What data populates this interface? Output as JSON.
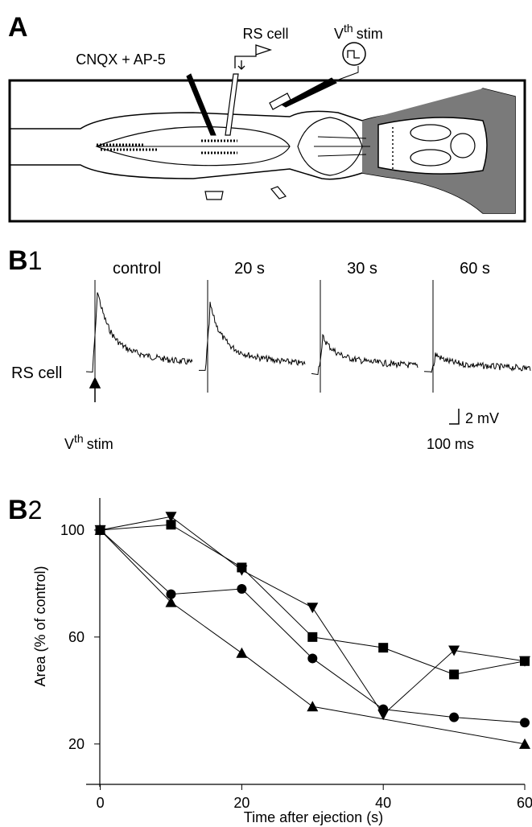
{
  "panel_a": {
    "label": "A",
    "cnqx": "CNQX + AP-5",
    "rs_cell": "RS cell",
    "vth": {
      "base": "V",
      "sup": "th",
      "rest": "stim"
    }
  },
  "panel_b1": {
    "label_main": "B",
    "label_num": "1",
    "conditions": [
      "control",
      "20 s",
      "30 s",
      "60 s"
    ],
    "rs_cell": "RS cell",
    "vth": {
      "base": "V",
      "sup": "th",
      "rest": "stim"
    },
    "scale_v": "2 mV",
    "scale_t": "100 ms"
  },
  "panel_b2": {
    "label_main": "B",
    "label_num": "2"
  },
  "chart_data": {
    "type": "line",
    "xlabel": "Time after ejection (s)",
    "ylabel": "Area (% of control)",
    "xlim": [
      -2,
      60
    ],
    "ylim": [
      4,
      112
    ],
    "xticks": [
      0,
      20,
      40,
      60
    ],
    "yticks": [
      20,
      60,
      100
    ],
    "series": [
      {
        "marker": "triangle-down",
        "color": "#000000",
        "x": [
          0,
          10,
          20,
          30,
          40,
          50,
          60
        ],
        "values": [
          100,
          105,
          85,
          71,
          31,
          55,
          51
        ]
      },
      {
        "marker": "square",
        "color": "#000000",
        "x": [
          0,
          10,
          20,
          30,
          40,
          50,
          60
        ],
        "values": [
          100,
          102,
          86,
          60,
          56,
          46,
          51
        ]
      },
      {
        "marker": "circle",
        "color": "#000000",
        "x": [
          0,
          10,
          20,
          30,
          40,
          50,
          60
        ],
        "values": [
          100,
          76,
          78,
          52,
          33,
          30,
          28
        ]
      },
      {
        "marker": "triangle-up",
        "color": "#000000",
        "x": [
          0,
          10,
          20,
          30,
          60
        ],
        "values": [
          100,
          73,
          54,
          34,
          20
        ]
      }
    ]
  }
}
